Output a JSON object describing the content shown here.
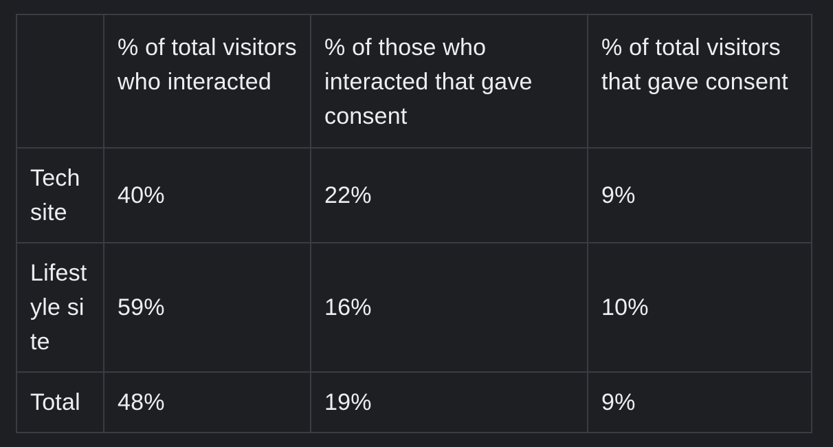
{
  "table": {
    "headers": [
      "",
      "% of total visitors who interacted",
      "% of those who interacted that gave consent",
      "% of total visitors that gave consent"
    ],
    "rows": [
      {
        "label": "Tech site",
        "cells": [
          "40%",
          "22%",
          "9%"
        ]
      },
      {
        "label": "Lifestyle site",
        "cells": [
          "59%",
          "16%",
          "10%"
        ]
      },
      {
        "label": "Total",
        "cells": [
          "48%",
          "19%",
          "9%"
        ]
      }
    ]
  },
  "colors": {
    "background": "#1e1f23",
    "border": "#3a3c43",
    "text": "#eceef2"
  }
}
